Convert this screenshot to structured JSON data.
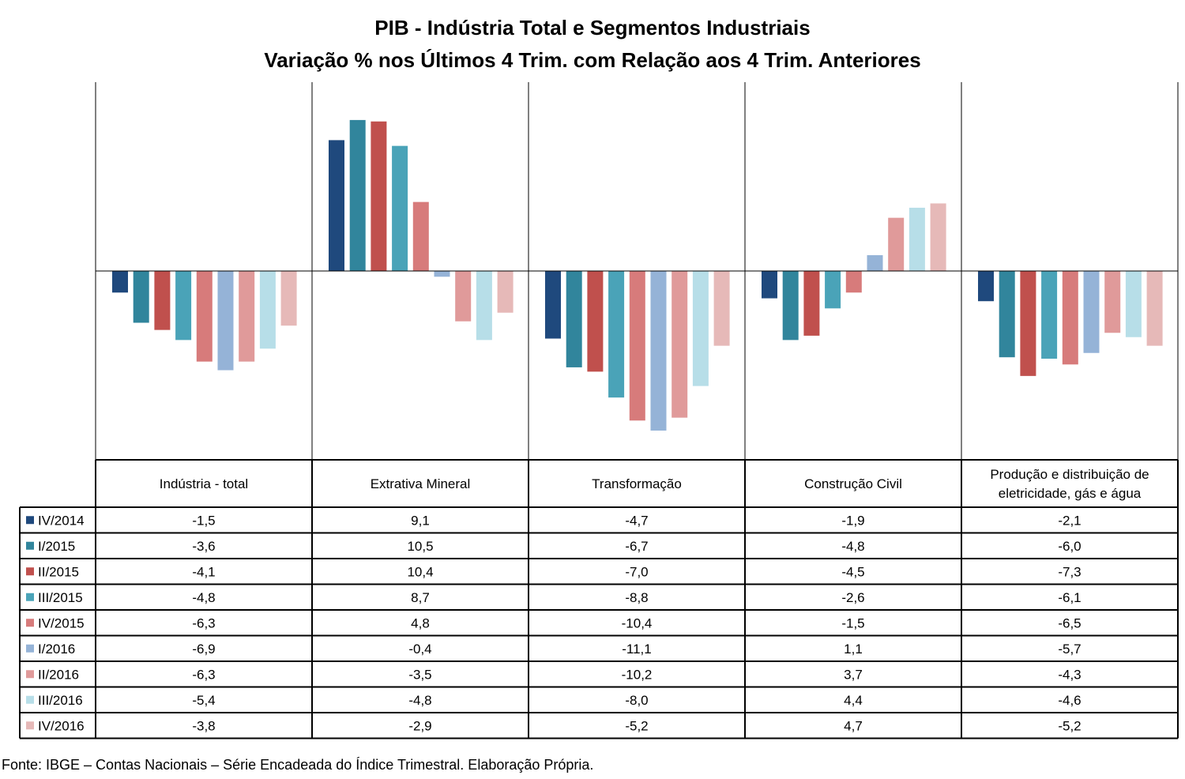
{
  "title": "PIB - Indústria Total e Segmentos Industriais",
  "subtitle": "Variação % nos Últimos 4 Trim. com Relação aos 4 Trim. Anteriores",
  "source": "Fonte: IBGE – Contas Nacionais – Série Encadeada do Índice Trimestral. Elaboração Própria.",
  "chart_data": {
    "type": "bar",
    "title": "PIB - Indústria Total e Segmentos Industriais",
    "subtitle": "Variação % nos Últimos 4 Trim. com Relação aos 4 Trim. Anteriores",
    "categories": [
      [
        "Indústria - total"
      ],
      [
        "Extrativa Mineral"
      ],
      [
        "Transformação"
      ],
      [
        "Construção Civil"
      ],
      [
        "Produção e distribuição de",
        "eletricidade, gás e água"
      ]
    ],
    "ylim": [
      -13,
      13
    ],
    "grid": false,
    "legend": "bottom-left data table",
    "series": [
      {
        "name": "IV/2014",
        "color": "#1f497d",
        "values": [
          -1.5,
          9.1,
          -4.7,
          -1.9,
          -2.1
        ],
        "labels": [
          "-1,5",
          "9,1",
          "-4,7",
          "-1,9",
          "-2,1"
        ]
      },
      {
        "name": "I/2015",
        "color": "#31859c",
        "values": [
          -3.6,
          10.5,
          -6.7,
          -4.8,
          -6.0
        ],
        "labels": [
          "-3,6",
          "10,5",
          "-6,7",
          "-4,8",
          "-6,0"
        ]
      },
      {
        "name": "II/2015",
        "color": "#c0504d",
        "values": [
          -4.1,
          10.4,
          -7.0,
          -4.5,
          -7.3
        ],
        "labels": [
          "-4,1",
          "10,4",
          "-7,0",
          "-4,5",
          "-7,3"
        ]
      },
      {
        "name": "III/2015",
        "color": "#4aa3b8",
        "values": [
          -4.8,
          8.7,
          -8.8,
          -2.6,
          -6.1
        ],
        "labels": [
          "-4,8",
          "8,7",
          "-8,8",
          "-2,6",
          "-6,1"
        ]
      },
      {
        "name": "IV/2015",
        "color": "#d77b7b",
        "values": [
          -6.3,
          4.8,
          -10.4,
          -1.5,
          -6.5
        ],
        "labels": [
          "-6,3",
          "4,8",
          "-10,4",
          "-1,5",
          "-6,5"
        ]
      },
      {
        "name": "I/2016",
        "color": "#95b3d7",
        "values": [
          -6.9,
          -0.4,
          -11.1,
          1.1,
          -5.7
        ],
        "labels": [
          "-6,9",
          "-0,4",
          "-11,1",
          "1,1",
          "-5,7"
        ]
      },
      {
        "name": "II/2016",
        "color": "#e09a9a",
        "values": [
          -6.3,
          -3.5,
          -10.2,
          3.7,
          -4.3
        ],
        "labels": [
          "-6,3",
          "-3,5",
          "-10,2",
          "3,7",
          "-4,3"
        ]
      },
      {
        "name": "III/2016",
        "color": "#b7dee8",
        "values": [
          -5.4,
          -4.8,
          -8.0,
          4.4,
          -4.6
        ],
        "labels": [
          "-5,4",
          "-4,8",
          "-8,0",
          "4,4",
          "-4,6"
        ]
      },
      {
        "name": "IV/2016",
        "color": "#e6b9b8",
        "values": [
          -3.8,
          -2.9,
          -5.2,
          4.7,
          -5.2
        ],
        "labels": [
          "-3,8",
          "-2,9",
          "-5,2",
          "4,7",
          "-5,2"
        ]
      }
    ]
  }
}
